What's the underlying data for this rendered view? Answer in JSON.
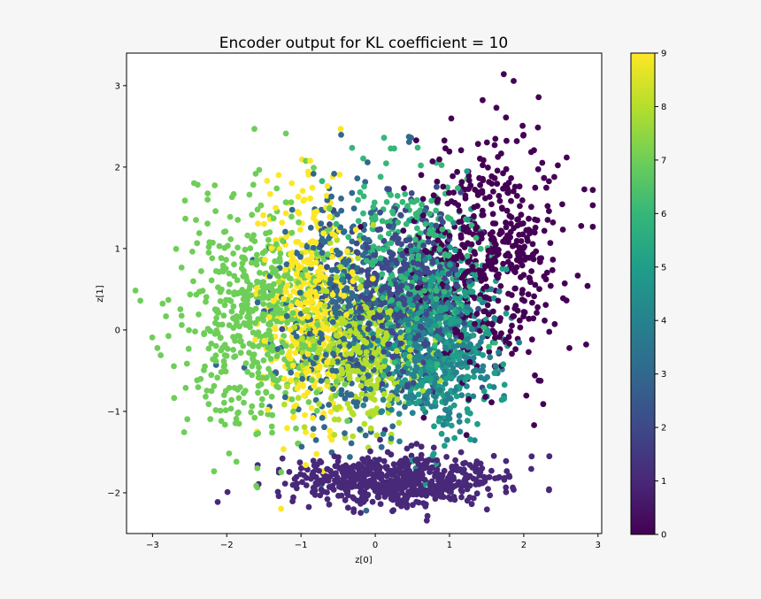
{
  "chart_data": {
    "type": "scatter",
    "title": "Encoder output for KL coefficient = 10",
    "xlabel": "z[0]",
    "ylabel": "z[1]",
    "xlim": [
      -3.35,
      3.05
    ],
    "ylim": [
      -2.5,
      3.4
    ],
    "x_ticks": [
      -3,
      -2,
      -1,
      0,
      1,
      2,
      3
    ],
    "y_ticks": [
      -2,
      -1,
      0,
      1,
      2,
      3
    ],
    "grid": false,
    "legend": "none",
    "colorbar": {
      "range": [
        0,
        9
      ],
      "ticks": [
        0,
        1,
        2,
        3,
        4,
        5,
        6,
        7,
        8,
        9
      ],
      "colormap": "viridis",
      "stops": [
        "#440154",
        "#482878",
        "#3e4989",
        "#31688e",
        "#26828e",
        "#1f9e89",
        "#35b779",
        "#6ece58",
        "#b5de2b",
        "#fde725"
      ]
    },
    "clusters": [
      {
        "label": 0,
        "color": "#440154",
        "center": [
          1.55,
          0.95
        ],
        "spread": [
          0.5,
          0.75
        ],
        "count": 520
      },
      {
        "label": 1,
        "color": "#482878",
        "center": [
          0.3,
          -1.85
        ],
        "spread": [
          0.7,
          0.16
        ],
        "count": 620
      },
      {
        "label": 2,
        "color": "#3e4989",
        "center": [
          0.4,
          0.45
        ],
        "spread": [
          0.4,
          0.5
        ],
        "count": 480
      },
      {
        "label": 3,
        "color": "#31688e",
        "center": [
          -0.4,
          0.3
        ],
        "spread": [
          0.45,
          0.75
        ],
        "count": 420
      },
      {
        "label": 4,
        "color": "#26828e",
        "center": [
          0.7,
          -0.3
        ],
        "spread": [
          0.45,
          0.45
        ],
        "count": 380
      },
      {
        "label": 5,
        "color": "#1f9e89",
        "center": [
          0.95,
          0.0
        ],
        "spread": [
          0.35,
          0.55
        ],
        "count": 360
      },
      {
        "label": 6,
        "color": "#35b779",
        "center": [
          0.45,
          0.7
        ],
        "spread": [
          0.45,
          0.6
        ],
        "count": 360
      },
      {
        "label": 7,
        "color": "#6ece58",
        "center": [
          -1.55,
          0.15
        ],
        "spread": [
          0.55,
          0.7
        ],
        "count": 560
      },
      {
        "label": 8,
        "color": "#b5de2b",
        "center": [
          -0.15,
          -0.2
        ],
        "spread": [
          0.45,
          0.45
        ],
        "count": 400
      },
      {
        "label": 9,
        "color": "#fde725",
        "center": [
          -0.85,
          0.3
        ],
        "spread": [
          0.3,
          0.7
        ],
        "count": 420
      }
    ]
  }
}
